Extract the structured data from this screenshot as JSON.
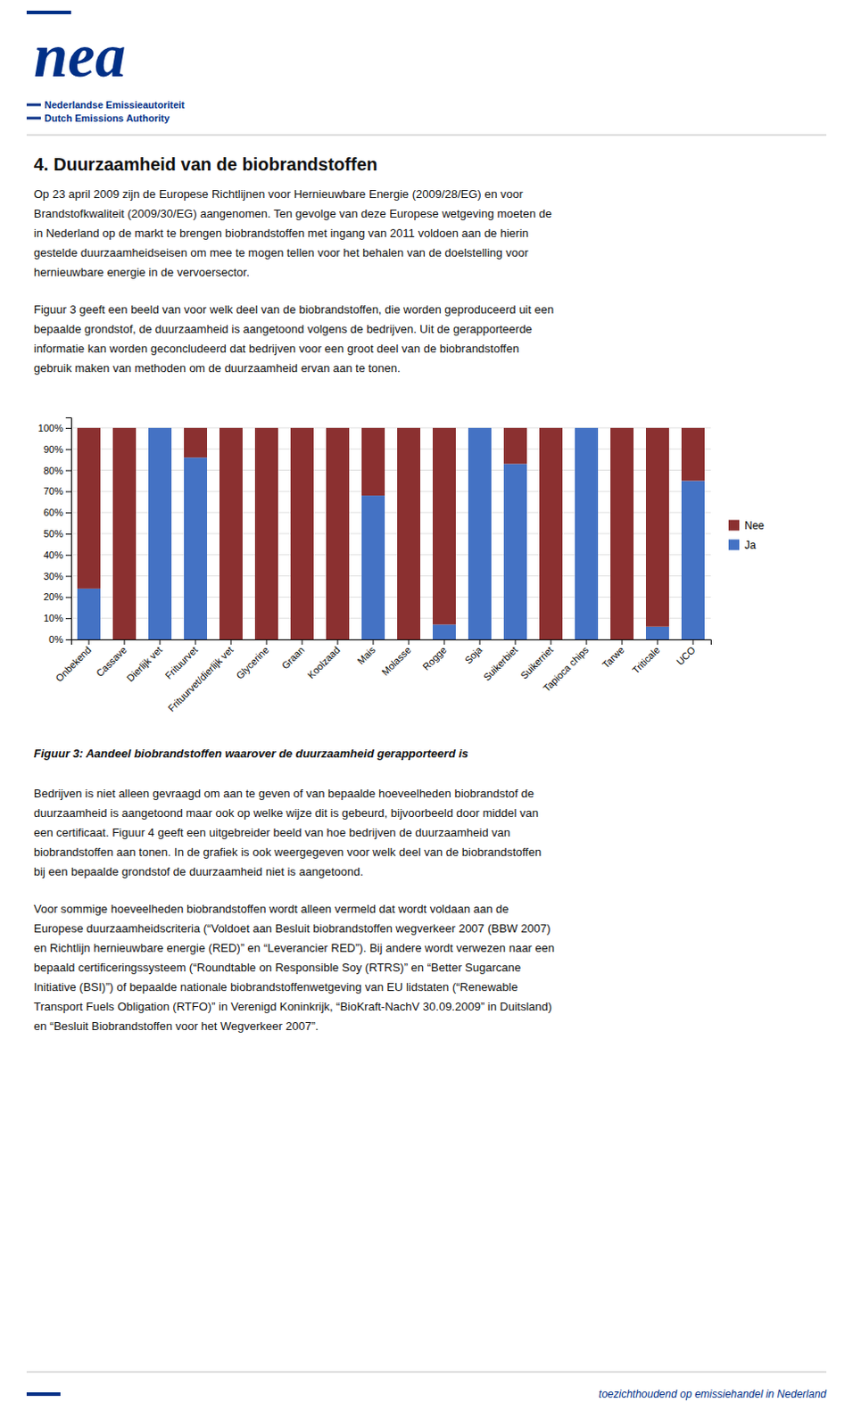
{
  "page": {
    "color": "#003087",
    "logo": "nea",
    "authority_nl": "Nederlandse Emissieautoriteit",
    "authority_en": "Dutch Emissions Authority",
    "heading": "4. Duurzaamheid van de biobrandstoffen",
    "paragraphs_before": [
      [
        "Op 23 april 2009 zijn de Europese Richtlijnen voor Hernieuwbare Energie (2009/28/EG) en voor",
        "Brandstofkwaliteit (2009/30/EG) aangenomen. Ten gevolge van deze Europese wetgeving moeten de",
        "in Nederland op de markt te brengen biobrandstoffen met ingang van 2011 voldoen aan de hierin",
        "gestelde duurzaamheidseisen om mee te mogen tellen voor het behalen van de doelstelling voor",
        "hernieuwbare energie in de vervoersector."
      ],
      [
        "Figuur 3 geeft een beeld van voor welk deel van de biobrandstoffen, die worden geproduceerd uit een",
        "bepaalde grondstof, de duurzaamheid is aangetoond volgens de bedrijven. Uit de gerapporteerde",
        "informatie kan worden geconcludeerd dat bedrijven voor een groot deel van de biobrandstoffen",
        "gebruik maken van methoden om de duurzaamheid ervan aan te tonen."
      ]
    ],
    "caption": "Figuur 3: Aandeel biobrandstoffen waarover de duurzaamheid gerapporteerd is",
    "paragraphs_after": [
      [
        "Bedrijven is niet alleen gevraagd om aan te geven of van bepaalde hoeveelheden biobrandstof de",
        "duurzaamheid is aangetoond maar ook op welke wijze dit is gebeurd, bijvoorbeeld door middel van",
        "een certificaat. Figuur 4 geeft een uitgebreider beeld van hoe bedrijven de duurzaamheid van",
        "biobrandstoffen aan tonen. In de grafiek is ook weergegeven voor welk deel van de biobrandstoffen",
        "bij een bepaalde grondstof de duurzaamheid niet is aangetoond."
      ],
      [
        "Voor sommige hoeveelheden biobrandstoffen wordt alleen vermeld dat wordt voldaan aan de",
        "Europese duurzaamheidscriteria (“Voldoet aan Besluit biobrandstoffen wegverkeer 2007 (BBW 2007)",
        "en Richtlijn hernieuwbare energie (RED)” en “Leverancier RED”). Bij andere wordt verwezen naar een",
        "bepaald certificeringssysteem (“Roundtable on Responsible Soy (RTRS)” en “Better Sugarcane",
        "Initiative (BSI)”) of bepaalde nationale biobrandstoffenwetgeving van EU lidstaten (“Renewable",
        "Transport Fuels Obligation (RTFO)” in Verenigd Koninkrijk, “BioKraft-NachV 30.09.2009” in Duitsland)",
        "en “Besluit Biobrandstoffen voor het Wegverkeer 2007”."
      ]
    ],
    "footer": "toezichthoudend op emissiehandel in Nederland"
  },
  "chart_data": {
    "type": "bar",
    "stacked": true,
    "categories": [
      "Onbekend",
      "Cassave",
      "Dierlijk vet",
      "Frituurvet",
      "Frituurvet/dierlijk vet",
      "Glycerine",
      "Graan",
      "Koolzaad",
      "Mais",
      "Molasse",
      "Rogge",
      "Soja",
      "Suikerbiet",
      "Suikerriet",
      "Tapioca chips",
      "Tarwe",
      "Triticale",
      "UCO"
    ],
    "series": [
      {
        "name": "Ja",
        "color": "#4472C4",
        "values": [
          24,
          0,
          100,
          86,
          0,
          0,
          0,
          0,
          68,
          0,
          7,
          100,
          83,
          0,
          100,
          0,
          6,
          75
        ]
      },
      {
        "name": "Nee",
        "color": "#8B3030",
        "values": [
          76,
          100,
          0,
          14,
          100,
          100,
          100,
          100,
          32,
          100,
          93,
          0,
          17,
          100,
          0,
          100,
          94,
          25
        ]
      }
    ],
    "ylim": [
      0,
      105
    ],
    "yticks": [
      {
        "value": 0,
        "label": "0%"
      },
      {
        "value": 10,
        "label": "10%"
      },
      {
        "value": 20,
        "label": "20%"
      },
      {
        "value": 30,
        "label": "30%"
      },
      {
        "value": 40,
        "label": "40%"
      },
      {
        "value": 50,
        "label": "50%"
      },
      {
        "value": 60,
        "label": "60%"
      },
      {
        "value": 70,
        "label": "70%"
      },
      {
        "value": 80,
        "label": "80%"
      },
      {
        "value": 90,
        "label": "90%"
      },
      {
        "value": 100,
        "label": "100%"
      }
    ],
    "grid": true,
    "legend": "right"
  }
}
